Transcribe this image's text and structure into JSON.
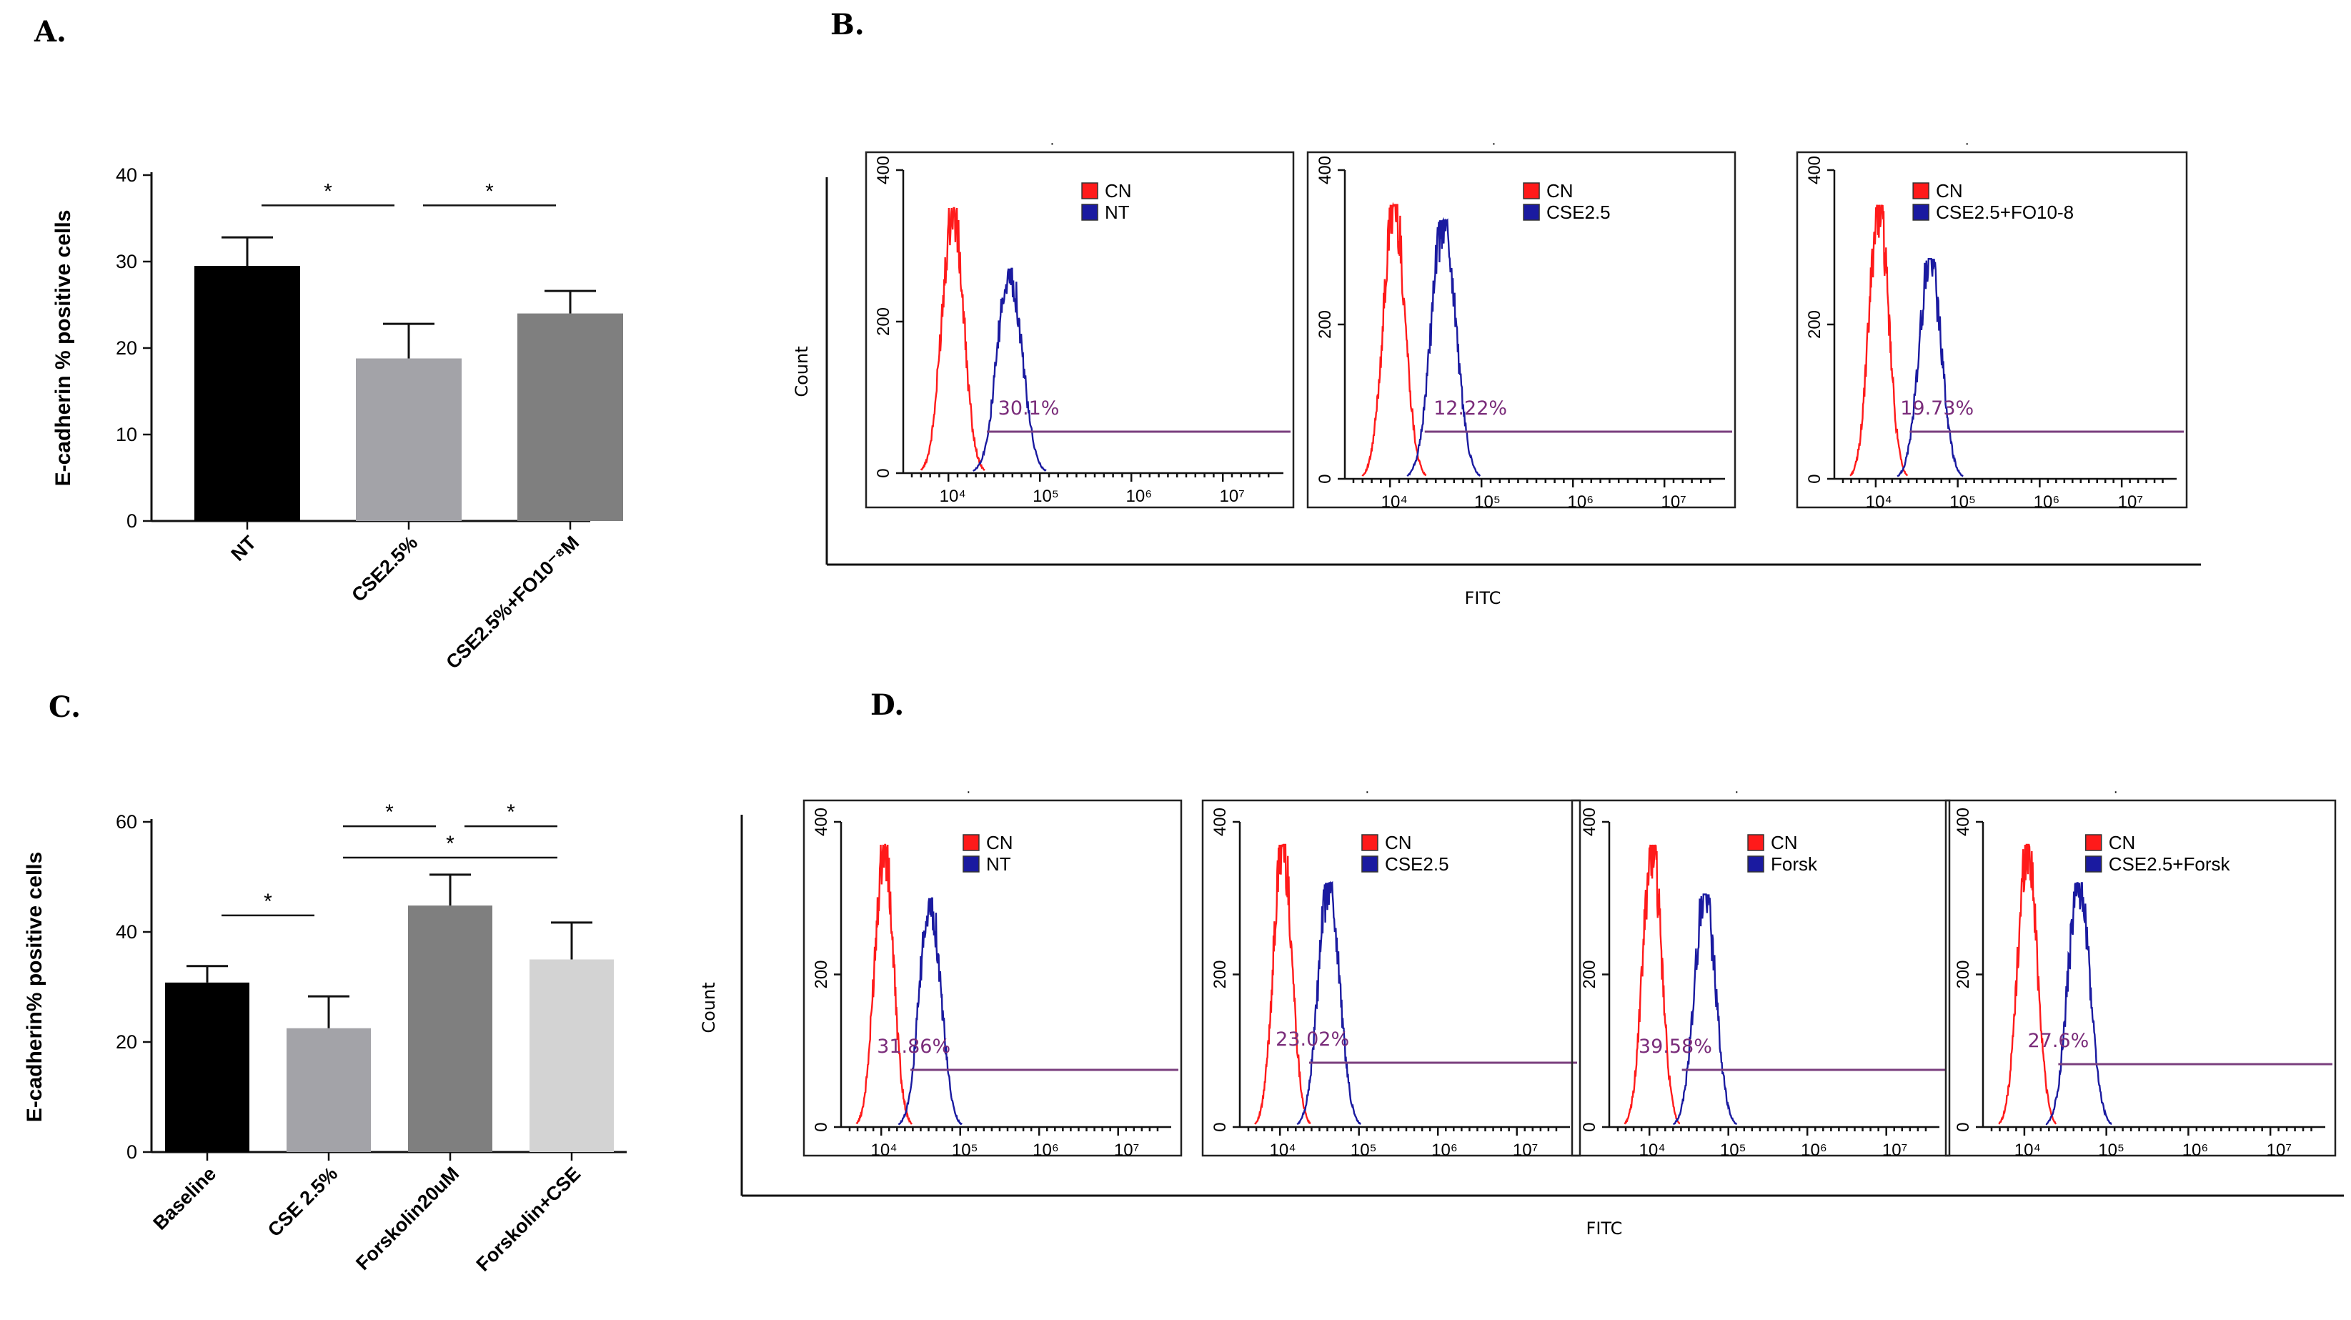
{
  "panel_labels": {
    "a": "A.",
    "b": "B.",
    "c": "C.",
    "d": "D."
  },
  "chart_data": [
    {
      "id": "A",
      "type": "bar",
      "title": "",
      "ylabel": "E-cadherin % positive cells",
      "xlabel": "",
      "ylim": [
        0,
        40
      ],
      "yticks": [
        0,
        10,
        20,
        30,
        40
      ],
      "categories": [
        "NT",
        "CSE2.5%",
        "CSE2.5%+FO10⁻⁸M"
      ],
      "values": [
        29.5,
        18.8,
        24.0
      ],
      "errors": [
        3.3,
        4.0,
        2.6
      ],
      "bar_colors": [
        "#000000",
        "#a3a3a8",
        "#7f7f7f"
      ],
      "significance": [
        {
          "from": 0,
          "to": 1,
          "label": "*",
          "y": 36.5
        },
        {
          "from": 1,
          "to": 2,
          "label": "*",
          "y": 36.5
        }
      ]
    },
    {
      "id": "C",
      "type": "bar",
      "title": "",
      "ylabel": "E-cadherin% positive cells",
      "xlabel": "",
      "ylim": [
        0,
        60
      ],
      "yticks": [
        0,
        20,
        40,
        60
      ],
      "categories": [
        "Baseline",
        "CSE 2.5%",
        "Forskolin20uM",
        "Forskolin+CSE"
      ],
      "values": [
        30.8,
        22.5,
        44.8,
        35.0
      ],
      "errors": [
        3.0,
        5.8,
        5.6,
        6.7
      ],
      "bar_colors": [
        "#000000",
        "#a3a3a8",
        "#7f7f7f",
        "#d3d3d3"
      ],
      "significance": [
        {
          "from": 0,
          "to": 1,
          "label": "*",
          "y": 43.0
        },
        {
          "from": 1,
          "to": 2,
          "label": "*",
          "y": 59.2
        },
        {
          "from": 2,
          "to": 3,
          "label": "*",
          "y": 59.2
        },
        {
          "from": 1,
          "to": 3,
          "label": "*",
          "y": 53.5
        }
      ]
    },
    {
      "id": "B",
      "type": "histogram",
      "xlabel": "FITC",
      "ylabel": "Count",
      "ylim": [
        0,
        400
      ],
      "yticks": [
        0,
        200,
        400
      ],
      "xticks": [
        "10⁴",
        "10⁵",
        "10⁶",
        "10⁷"
      ],
      "panels": [
        {
          "legend": [
            "CN",
            "NT"
          ],
          "gate_pct": "30.1%",
          "red_peak": 350,
          "blue_peak": 270,
          "red_pos": 0.13,
          "blue_pos": 0.28,
          "gate_from": 0.22
        },
        {
          "legend": [
            "CN",
            "CSE2.5"
          ],
          "gate_pct": "12.22%",
          "red_peak": 355,
          "blue_peak": 335,
          "red_pos": 0.13,
          "blue_pos": 0.26,
          "gate_from": 0.21
        },
        {
          "legend": [
            "CN",
            "CSE2.5+FO10-8"
          ],
          "gate_pct": "19.73%",
          "red_peak": 355,
          "blue_peak": 285,
          "red_pos": 0.13,
          "blue_pos": 0.28,
          "gate_from": 0.22
        }
      ]
    },
    {
      "id": "D",
      "type": "histogram",
      "xlabel": "FITC",
      "ylabel": "Count",
      "ylim": [
        0,
        400
      ],
      "yticks": [
        0,
        200,
        400
      ],
      "xticks": [
        "10⁴",
        "10⁵",
        "10⁶",
        "10⁷"
      ],
      "panels": [
        {
          "legend": [
            "CN",
            "NT"
          ],
          "gate_pct": "31.86%",
          "red_peak": 370,
          "blue_peak": 300,
          "red_pos": 0.13,
          "blue_pos": 0.27,
          "gate_from": 0.21
        },
        {
          "legend": [
            "CN",
            "CSE2.5"
          ],
          "gate_pct": "23.02%",
          "red_peak": 370,
          "blue_peak": 320,
          "red_pos": 0.13,
          "blue_pos": 0.27,
          "gate_from": 0.21
        },
        {
          "legend": [
            "CN",
            "Forsk"
          ],
          "gate_pct": "39.58%",
          "red_peak": 370,
          "blue_peak": 305,
          "red_pos": 0.13,
          "blue_pos": 0.29,
          "gate_from": 0.22
        },
        {
          "legend": [
            "CN",
            "CSE2.5+Forsk"
          ],
          "gate_pct": "27.6%",
          "red_peak": 370,
          "blue_peak": 320,
          "red_pos": 0.13,
          "blue_pos": 0.28,
          "gate_from": 0.22
        }
      ]
    }
  ],
  "colors": {
    "cn": "#ff1a1a",
    "treated": "#1a1aa0",
    "gate": "#7a3f7e"
  }
}
